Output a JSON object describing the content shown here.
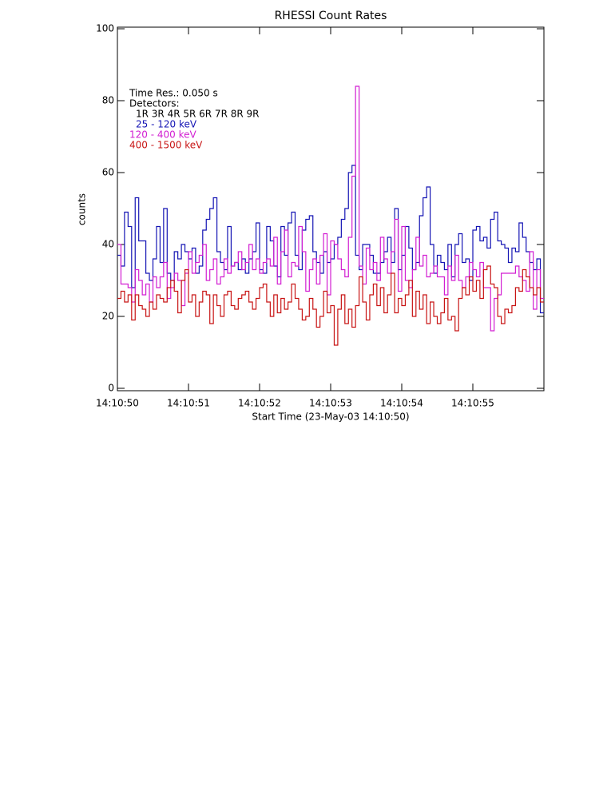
{
  "chart_data": {
    "type": "step",
    "title": "RHESSI Count Rates",
    "xlabel": "Start Time (23-May-03 14:10:50)",
    "ylabel": "counts",
    "annotations": [
      "Time Res.: 0.050 s",
      "Detectors:",
      "1R 3R 4R 5R 6R 7R 8R 9R"
    ],
    "xlim": [
      0,
      6
    ],
    "xticks": [
      {
        "value": 0,
        "label": "14:10:50"
      },
      {
        "value": 1,
        "label": "14:10:51"
      },
      {
        "value": 2,
        "label": "14:10:52"
      },
      {
        "value": 3,
        "label": "14:10:53"
      },
      {
        "value": 4,
        "label": "14:10:54"
      },
      {
        "value": 5,
        "label": "14:10:55"
      }
    ],
    "ylim": [
      0,
      100
    ],
    "yticks": [
      0,
      20,
      40,
      60,
      80,
      100
    ],
    "x": [
      0,
      0.05,
      0.1,
      0.15,
      0.2,
      0.25,
      0.3,
      0.35,
      0.4,
      0.45,
      0.5,
      0.55,
      0.6,
      0.65,
      0.7,
      0.75,
      0.8,
      0.85,
      0.9,
      0.95,
      1,
      1.05,
      1.1,
      1.15,
      1.2,
      1.25,
      1.3,
      1.35,
      1.4,
      1.45,
      1.5,
      1.55,
      1.6,
      1.65,
      1.7,
      1.75,
      1.8,
      1.85,
      1.9,
      1.95,
      2,
      2.05,
      2.1,
      2.15,
      2.2,
      2.25,
      2.3,
      2.35,
      2.4,
      2.45,
      2.5,
      2.55,
      2.6,
      2.65,
      2.7,
      2.75,
      2.8,
      2.85,
      2.9,
      2.95,
      3,
      3.05,
      3.1,
      3.15,
      3.2,
      3.25,
      3.3,
      3.35,
      3.4,
      3.45,
      3.5,
      3.55,
      3.6,
      3.65,
      3.7,
      3.75,
      3.8,
      3.85,
      3.9,
      3.95,
      4,
      4.05,
      4.1,
      4.15,
      4.2,
      4.25,
      4.3,
      4.35,
      4.4,
      4.45,
      4.5,
      4.55,
      4.6,
      4.65,
      4.7,
      4.75,
      4.8,
      4.85,
      4.9,
      4.95,
      5,
      5.05,
      5.1,
      5.15,
      5.2,
      5.25,
      5.3,
      5.35,
      5.4,
      5.45,
      5.5,
      5.55,
      5.6,
      5.65,
      5.7,
      5.75,
      5.8,
      5.85,
      5.9,
      5.95
    ],
    "series": [
      {
        "name": "25 - 120 keV",
        "color": "#1414b4",
        "values": [
          37,
          34,
          49,
          45,
          28,
          53,
          41,
          41,
          32,
          30,
          36,
          45,
          35,
          50,
          32,
          30,
          38,
          36,
          40,
          38,
          36,
          39,
          32,
          34,
          44,
          47,
          50,
          53,
          38,
          35,
          33,
          45,
          34,
          35,
          33,
          36,
          32,
          36,
          38,
          46,
          33,
          32,
          45,
          41,
          34,
          31,
          45,
          37,
          46,
          49,
          37,
          33,
          44,
          47,
          48,
          38,
          35,
          32,
          38,
          35,
          36,
          40,
          42,
          47,
          50,
          60,
          62,
          37,
          33,
          40,
          40,
          37,
          32,
          32,
          35,
          38,
          42,
          35,
          50,
          33,
          37,
          45,
          39,
          33,
          35,
          48,
          53,
          56,
          40,
          32,
          37,
          35,
          33,
          40,
          31,
          40,
          43,
          35,
          36,
          30,
          44,
          45,
          41,
          42,
          39,
          47,
          49,
          41,
          40,
          39,
          35,
          39,
          38,
          46,
          42,
          38,
          35,
          33,
          36,
          21
        ]
      },
      {
        "name": "120 - 400 keV",
        "color": "#d21ed2",
        "values": [
          40,
          29,
          29,
          28,
          24,
          33,
          30,
          26,
          29,
          24,
          31,
          28,
          31,
          35,
          25,
          28,
          32,
          30,
          23,
          32,
          38,
          32,
          35,
          37,
          40,
          30,
          33,
          36,
          29,
          31,
          36,
          32,
          34,
          35,
          38,
          33,
          35,
          40,
          33,
          36,
          32,
          35,
          36,
          34,
          42,
          29,
          38,
          44,
          31,
          35,
          34,
          45,
          38,
          27,
          33,
          36,
          29,
          37,
          43,
          26,
          41,
          40,
          36,
          33,
          31,
          42,
          59,
          84,
          34,
          29,
          39,
          33,
          35,
          30,
          42,
          36,
          32,
          38,
          47,
          27,
          45,
          30,
          28,
          33,
          42,
          34,
          37,
          31,
          32,
          34,
          31,
          31,
          26,
          34,
          30,
          37,
          30,
          28,
          31,
          35,
          33,
          31,
          35,
          28,
          28,
          16,
          25,
          26,
          32,
          32,
          32,
          32,
          34,
          31,
          30,
          27,
          38,
          22,
          33,
          25
        ]
      },
      {
        "name": "400 - 1500 keV",
        "color": "#c81414",
        "values": [
          25,
          27,
          24,
          26,
          19,
          26,
          23,
          22,
          20,
          24,
          22,
          26,
          25,
          24,
          28,
          30,
          27,
          21,
          30,
          33,
          24,
          26,
          20,
          24,
          27,
          26,
          18,
          26,
          23,
          20,
          26,
          27,
          23,
          22,
          25,
          26,
          27,
          24,
          22,
          25,
          28,
          29,
          24,
          20,
          26,
          21,
          25,
          22,
          24,
          29,
          25,
          22,
          19,
          20,
          25,
          22,
          17,
          20,
          27,
          21,
          23,
          12,
          22,
          26,
          18,
          22,
          17,
          23,
          31,
          24,
          19,
          26,
          29,
          23,
          28,
          21,
          26,
          32,
          21,
          25,
          23,
          26,
          30,
          20,
          27,
          22,
          26,
          18,
          24,
          20,
          18,
          21,
          25,
          19,
          20,
          16,
          25,
          28,
          26,
          31,
          27,
          30,
          25,
          33,
          34,
          29,
          28,
          20,
          18,
          22,
          21,
          23,
          28,
          27,
          33,
          31,
          28,
          26,
          28,
          24
        ]
      }
    ]
  }
}
